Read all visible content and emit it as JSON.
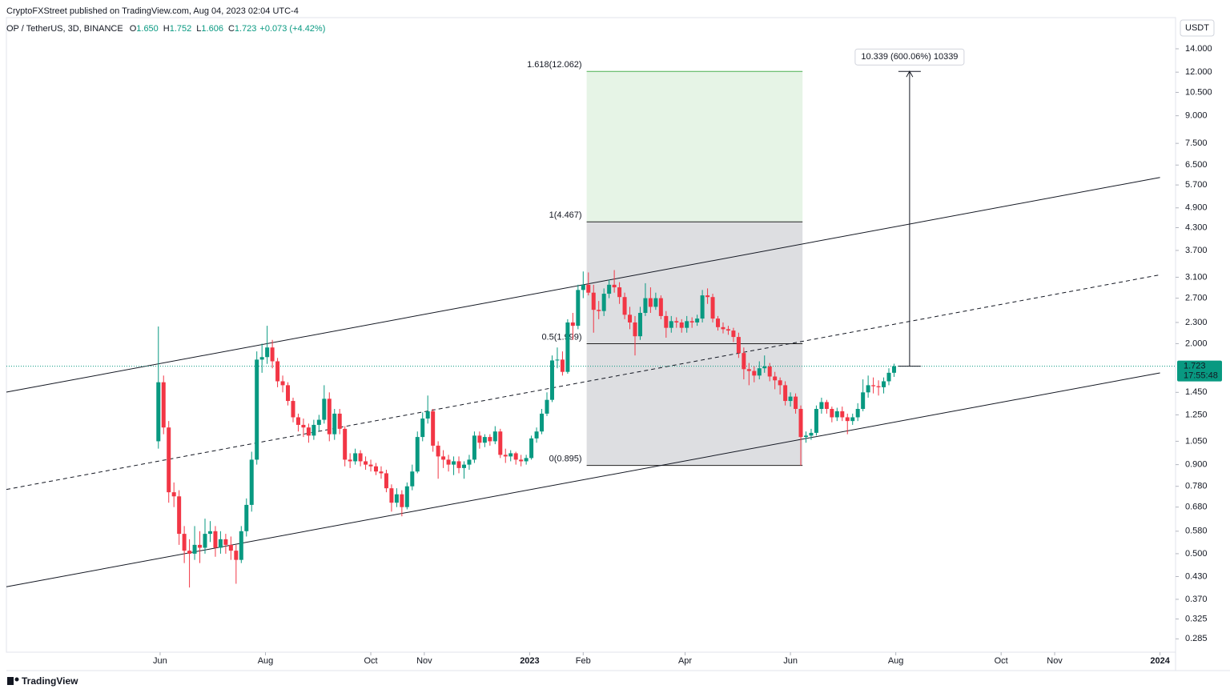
{
  "page": {
    "publisher": "CryptoFXStreet published on TradingView.com, Aug 04, 2023 02:04 UTC-4",
    "brand": "TradingView"
  },
  "chart_data": {
    "type": "candlestick",
    "header": {
      "symbol": "OP / TetherUS, 3D, BINANCE",
      "ohlc": [
        {
          "key": "O",
          "value": "1.650"
        },
        {
          "key": "H",
          "value": "1.752"
        },
        {
          "key": "L",
          "value": "1.606"
        },
        {
          "key": "C",
          "value": "1.723"
        }
      ],
      "change": "+0.073 (+4.42%)"
    },
    "currency": "USDT",
    "price_badge": {
      "price": "1.723",
      "countdown": "17:55:48"
    },
    "up_color": "#089981",
    "down_color": "#f23645",
    "grid": false,
    "log_scale": true,
    "x": [
      "2022-05-31",
      "2022-06-03",
      "2022-06-06",
      "2022-06-09",
      "2022-06-12",
      "2022-06-15",
      "2022-06-18",
      "2022-06-21",
      "2022-06-24",
      "2022-06-27",
      "2022-06-30",
      "2022-07-03",
      "2022-07-06",
      "2022-07-09",
      "2022-07-12",
      "2022-07-15",
      "2022-07-18",
      "2022-07-21",
      "2022-07-24",
      "2022-07-27",
      "2022-07-30",
      "2022-08-02",
      "2022-08-05",
      "2022-08-08",
      "2022-08-11",
      "2022-08-14",
      "2022-08-17",
      "2022-08-20",
      "2022-08-23",
      "2022-08-26",
      "2022-08-29",
      "2022-09-01",
      "2022-09-04",
      "2022-09-07",
      "2022-09-10",
      "2022-09-13",
      "2022-09-16",
      "2022-09-19",
      "2022-09-22",
      "2022-09-25",
      "2022-09-28",
      "2022-10-01",
      "2022-10-04",
      "2022-10-07",
      "2022-10-10",
      "2022-10-13",
      "2022-10-16",
      "2022-10-19",
      "2022-10-22",
      "2022-10-25",
      "2022-10-28",
      "2022-10-31",
      "2022-11-03",
      "2022-11-06",
      "2022-11-09",
      "2022-11-12",
      "2022-11-15",
      "2022-11-18",
      "2022-11-21",
      "2022-11-24",
      "2022-11-27",
      "2022-11-30",
      "2022-12-03",
      "2022-12-06",
      "2022-12-09",
      "2022-12-12",
      "2022-12-15",
      "2022-12-18",
      "2022-12-21",
      "2022-12-24",
      "2022-12-27",
      "2022-12-30",
      "2023-01-02",
      "2023-01-05",
      "2023-01-08",
      "2023-01-11",
      "2023-01-14",
      "2023-01-17",
      "2023-01-20",
      "2023-01-23",
      "2023-01-26",
      "2023-01-29",
      "2023-02-01",
      "2023-02-04",
      "2023-02-07",
      "2023-02-10",
      "2023-02-13",
      "2023-02-16",
      "2023-02-19",
      "2023-02-22",
      "2023-02-25",
      "2023-02-28",
      "2023-03-03",
      "2023-03-06",
      "2023-03-09",
      "2023-03-12",
      "2023-03-15",
      "2023-03-18",
      "2023-03-21",
      "2023-03-24",
      "2023-03-27",
      "2023-03-30",
      "2023-04-02",
      "2023-04-05",
      "2023-04-08",
      "2023-04-11",
      "2023-04-14",
      "2023-04-17",
      "2023-04-20",
      "2023-04-23",
      "2023-04-26",
      "2023-04-29",
      "2023-05-02",
      "2023-05-05",
      "2023-05-08",
      "2023-05-11",
      "2023-05-14",
      "2023-05-17",
      "2023-05-20",
      "2023-05-23",
      "2023-05-26",
      "2023-05-29",
      "2023-06-01",
      "2023-06-04",
      "2023-06-07",
      "2023-06-10",
      "2023-06-13",
      "2023-06-16",
      "2023-06-19",
      "2023-06-22",
      "2023-06-25",
      "2023-06-28",
      "2023-07-01",
      "2023-07-04",
      "2023-07-07",
      "2023-07-10",
      "2023-07-13",
      "2023-07-16",
      "2023-07-19",
      "2023-07-22",
      "2023-07-25",
      "2023-07-28",
      "2023-07-31"
    ],
    "open": [
      1.05,
      1.55,
      1.15,
      0.75,
      0.73,
      0.57,
      0.51,
      0.5,
      0.53,
      0.52,
      0.57,
      0.58,
      0.52,
      0.55,
      0.53,
      0.51,
      0.48,
      0.58,
      0.69,
      0.93,
      1.8,
      1.83,
      1.95,
      1.78,
      1.56,
      1.52,
      1.37,
      1.23,
      1.17,
      1.15,
      1.09,
      1.17,
      1.21,
      1.39,
      1.1,
      1.26,
      1.14,
      0.93,
      0.92,
      0.97,
      0.92,
      0.9,
      0.89,
      0.86,
      0.85,
      0.77,
      0.7,
      0.74,
      0.68,
      0.78,
      0.86,
      1.08,
      1.22,
      1.28,
      1.02,
      0.95,
      0.93,
      0.9,
      0.92,
      0.88,
      0.9,
      0.93,
      1.09,
      1.04,
      1.08,
      1.05,
      1.12,
      0.96,
      0.95,
      0.97,
      0.93,
      0.92,
      0.94,
      1.07,
      1.12,
      1.26,
      1.38,
      1.79,
      1.8,
      1.66,
      2.3,
      2.25,
      2.85,
      2.95,
      2.8,
      2.5,
      2.48,
      2.78,
      2.95,
      2.9,
      2.72,
      2.42,
      2.3,
      2.1,
      2.45,
      2.7,
      2.55,
      2.7,
      2.4,
      2.22,
      2.32,
      2.3,
      2.22,
      2.32,
      2.3,
      2.36,
      2.75,
      2.72,
      2.36,
      2.23,
      2.2,
      2.18,
      2.09,
      1.88,
      1.69,
      1.67,
      1.62,
      1.7,
      1.72,
      1.61,
      1.57,
      1.52,
      1.37,
      1.41,
      1.3,
      1.08,
      1.09,
      1.11,
      1.3,
      1.36,
      1.3,
      1.23,
      1.28,
      1.23,
      1.2,
      1.23,
      1.3,
      1.45,
      1.52,
      1.51,
      1.5,
      1.56,
      1.65
    ],
    "high": [
      2.24,
      1.62,
      1.2,
      0.8,
      0.76,
      0.6,
      0.55,
      0.6,
      0.58,
      0.63,
      0.62,
      0.6,
      0.58,
      0.57,
      0.56,
      0.53,
      0.6,
      0.72,
      0.98,
      1.9,
      2.0,
      2.25,
      2.05,
      1.82,
      1.62,
      1.55,
      1.4,
      1.26,
      1.22,
      1.18,
      1.21,
      1.25,
      1.52,
      1.45,
      1.3,
      1.3,
      1.16,
      0.97,
      1.0,
      0.99,
      0.95,
      0.93,
      0.91,
      0.89,
      0.87,
      0.79,
      0.77,
      0.76,
      0.8,
      0.9,
      1.12,
      1.27,
      1.42,
      1.3,
      1.05,
      0.99,
      0.96,
      0.95,
      0.95,
      0.92,
      0.96,
      1.12,
      1.12,
      1.1,
      1.1,
      1.16,
      1.14,
      1.0,
      0.99,
      0.98,
      0.96,
      0.96,
      1.09,
      1.15,
      1.3,
      1.45,
      1.85,
      1.95,
      1.9,
      2.35,
      2.45,
      2.95,
      3.22,
      3.2,
      2.95,
      2.65,
      2.88,
      3.05,
      3.25,
      3.0,
      2.8,
      2.55,
      2.4,
      2.55,
      2.98,
      2.9,
      2.8,
      2.75,
      2.48,
      2.4,
      2.38,
      2.35,
      2.4,
      2.38,
      2.42,
      2.85,
      2.88,
      2.78,
      2.4,
      2.3,
      2.25,
      2.22,
      2.15,
      1.95,
      1.76,
      1.72,
      1.78,
      1.85,
      1.76,
      1.66,
      1.6,
      1.56,
      1.45,
      1.44,
      1.33,
      1.12,
      1.14,
      1.33,
      1.4,
      1.38,
      1.32,
      1.31,
      1.32,
      1.26,
      1.26,
      1.35,
      1.58,
      1.62,
      1.6,
      1.57,
      1.6,
      1.7,
      1.752
    ],
    "low": [
      1.0,
      1.1,
      0.7,
      0.68,
      0.53,
      0.47,
      0.4,
      0.48,
      0.47,
      0.5,
      0.54,
      0.49,
      0.5,
      0.5,
      0.48,
      0.41,
      0.47,
      0.56,
      0.66,
      0.9,
      1.65,
      1.75,
      1.7,
      1.5,
      1.45,
      1.33,
      1.19,
      1.12,
      1.08,
      1.04,
      1.06,
      1.12,
      1.18,
      1.05,
      1.06,
      1.1,
      0.89,
      0.88,
      0.9,
      0.89,
      0.87,
      0.86,
      0.84,
      0.82,
      0.75,
      0.66,
      0.68,
      0.64,
      0.67,
      0.76,
      0.85,
      1.05,
      1.18,
      0.98,
      0.82,
      0.88,
      0.86,
      0.84,
      0.85,
      0.82,
      0.87,
      0.91,
      1.0,
      1.01,
      1.02,
      1.03,
      0.94,
      0.91,
      0.92,
      0.9,
      0.89,
      0.9,
      0.93,
      1.04,
      1.1,
      1.24,
      1.36,
      1.7,
      1.62,
      1.64,
      2.05,
      2.2,
      2.7,
      2.75,
      2.15,
      2.35,
      2.4,
      2.7,
      2.8,
      2.6,
      2.35,
      2.2,
      1.85,
      2.05,
      2.4,
      2.45,
      2.5,
      2.35,
      2.08,
      2.15,
      2.22,
      2.15,
      2.15,
      2.22,
      2.25,
      2.3,
      2.6,
      2.3,
      2.18,
      2.14,
      2.12,
      2.02,
      1.82,
      1.58,
      1.52,
      1.55,
      1.58,
      1.65,
      1.56,
      1.48,
      1.43,
      1.33,
      1.32,
      1.26,
      0.895,
      1.04,
      1.06,
      1.09,
      1.26,
      1.26,
      1.19,
      1.2,
      1.2,
      1.1,
      1.17,
      1.2,
      1.28,
      1.4,
      1.44,
      1.42,
      1.44,
      1.52,
      1.606
    ],
    "close": [
      1.55,
      1.15,
      0.75,
      0.73,
      0.57,
      0.51,
      0.5,
      0.53,
      0.52,
      0.57,
      0.58,
      0.52,
      0.55,
      0.53,
      0.51,
      0.48,
      0.58,
      0.69,
      0.93,
      1.8,
      1.83,
      1.95,
      1.78,
      1.56,
      1.52,
      1.37,
      1.23,
      1.17,
      1.15,
      1.09,
      1.17,
      1.21,
      1.39,
      1.1,
      1.26,
      1.14,
      0.93,
      0.92,
      0.97,
      0.92,
      0.9,
      0.89,
      0.86,
      0.85,
      0.77,
      0.7,
      0.74,
      0.68,
      0.78,
      0.86,
      1.08,
      1.22,
      1.28,
      1.02,
      0.95,
      0.93,
      0.9,
      0.92,
      0.88,
      0.9,
      0.93,
      1.09,
      1.04,
      1.08,
      1.05,
      1.12,
      0.96,
      0.95,
      0.97,
      0.93,
      0.92,
      0.94,
      1.07,
      1.12,
      1.26,
      1.38,
      1.79,
      1.8,
      1.66,
      2.3,
      2.25,
      2.85,
      2.95,
      2.8,
      2.5,
      2.48,
      2.78,
      2.95,
      2.9,
      2.72,
      2.42,
      2.3,
      2.1,
      2.45,
      2.7,
      2.55,
      2.7,
      2.4,
      2.22,
      2.32,
      2.3,
      2.22,
      2.32,
      2.3,
      2.36,
      2.75,
      2.72,
      2.36,
      2.23,
      2.2,
      2.18,
      2.09,
      1.88,
      1.69,
      1.67,
      1.62,
      1.7,
      1.72,
      1.61,
      1.57,
      1.52,
      1.37,
      1.41,
      1.3,
      1.08,
      1.09,
      1.11,
      1.3,
      1.36,
      1.3,
      1.23,
      1.28,
      1.23,
      1.2,
      1.23,
      1.3,
      1.45,
      1.52,
      1.51,
      1.5,
      1.56,
      1.65,
      1.723
    ],
    "xlim": [
      "2022-03-04",
      "2024-01-10"
    ],
    "xticks": [
      {
        "value": "2022-06-01",
        "label": "Jun"
      },
      {
        "value": "2022-08-01",
        "label": "Aug"
      },
      {
        "value": "2022-10-01",
        "label": "Oct"
      },
      {
        "value": "2022-11-01",
        "label": "Nov"
      },
      {
        "value": "2023-01-01",
        "label": "2023"
      },
      {
        "value": "2023-02-01",
        "label": "Feb"
      },
      {
        "value": "2023-04-01",
        "label": "Apr"
      },
      {
        "value": "2023-06-01",
        "label": "Jun"
      },
      {
        "value": "2023-08-01",
        "label": "Aug"
      },
      {
        "value": "2023-10-01",
        "label": "Oct"
      },
      {
        "value": "2023-11-01",
        "label": "Nov"
      },
      {
        "value": "2024-01-01",
        "label": "2024"
      }
    ],
    "ylim": [
      0.261,
      17.2
    ],
    "yticks": [
      {
        "value": 14,
        "label": "14.000"
      },
      {
        "value": 12,
        "label": "12.000"
      },
      {
        "value": 10.5,
        "label": "10.500"
      },
      {
        "value": 9,
        "label": "9.000"
      },
      {
        "value": 7.5,
        "label": "7.500"
      },
      {
        "value": 6.5,
        "label": "6.500"
      },
      {
        "value": 5.7,
        "label": "5.700"
      },
      {
        "value": 4.9,
        "label": "4.900"
      },
      {
        "value": 4.3,
        "label": "4.300"
      },
      {
        "value": 3.7,
        "label": "3.700"
      },
      {
        "value": 3.1,
        "label": "3.100"
      },
      {
        "value": 2.7,
        "label": "2.700"
      },
      {
        "value": 2.3,
        "label": "2.300"
      },
      {
        "value": 2,
        "label": "2.000"
      },
      {
        "value": 1.45,
        "label": "1.450"
      },
      {
        "value": 1.25,
        "label": "1.250"
      },
      {
        "value": 1.05,
        "label": "1.050"
      },
      {
        "value": 0.9,
        "label": "0.900"
      },
      {
        "value": 0.78,
        "label": "0.780"
      },
      {
        "value": 0.68,
        "label": "0.680"
      },
      {
        "value": 0.58,
        "label": "0.580"
      },
      {
        "value": 0.5,
        "label": "0.500"
      },
      {
        "value": 0.43,
        "label": "0.430"
      },
      {
        "value": 0.37,
        "label": "0.370"
      },
      {
        "value": 0.325,
        "label": "0.325"
      },
      {
        "value": 0.285,
        "label": "0.285"
      }
    ],
    "channel_lines": [
      {
        "dashed": false,
        "points": [
          [
            "2022-03-04",
            1.452
          ],
          [
            "2024-01-01",
            5.99
          ]
        ]
      },
      {
        "dashed": true,
        "points": [
          [
            "2022-03-04",
            0.764
          ],
          [
            "2024-01-01",
            3.15
          ]
        ]
      },
      {
        "dashed": false,
        "points": [
          [
            "2022-03-04",
            0.402
          ],
          [
            "2024-01-01",
            1.649
          ]
        ]
      }
    ],
    "fib": {
      "start": "2023-02-03",
      "end": "2023-06-08",
      "levels": [
        {
          "value": 12.062,
          "label": "1.618(12.062)",
          "color": "#4caf50"
        },
        {
          "value": 4.467,
          "label": "1(4.467)",
          "color": "#222222"
        },
        {
          "value": 1.999,
          "label": "0.5(1.999)",
          "color": "#222222"
        },
        {
          "value": 0.895,
          "label": "0(0.895)",
          "color": "#222222"
        }
      ],
      "zone_colors": [
        "rgba(76,175,80,0.14)",
        "rgba(120,123,134,0.25)",
        "rgba(120,123,134,0.25)"
      ]
    },
    "measure": {
      "x": "2023-08-09",
      "from": 1.723,
      "to": 12.062,
      "label": "10.339 (600.06%) 10339"
    }
  }
}
